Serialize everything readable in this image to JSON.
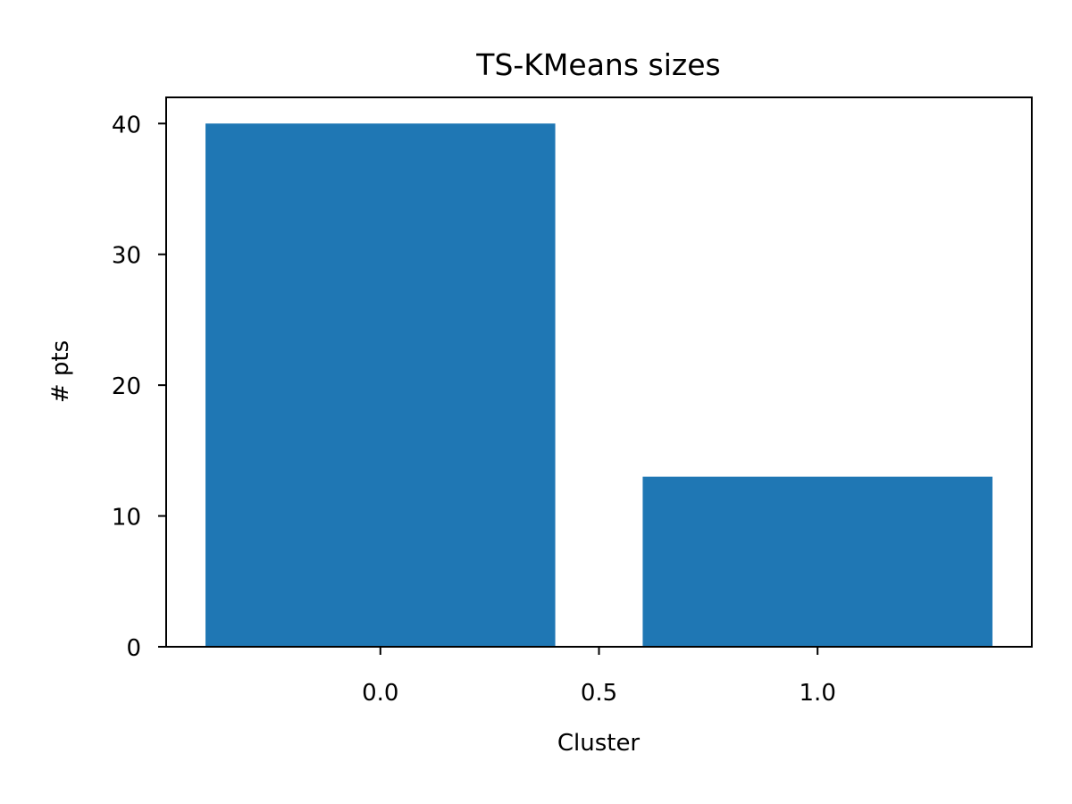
{
  "chart_data": {
    "type": "bar",
    "title": "TS-KMeans sizes",
    "xlabel": "Cluster",
    "ylabel": "# pts",
    "x": [
      0,
      1
    ],
    "values": [
      40,
      13
    ],
    "bar_width": 0.8,
    "xlim": [
      -0.49,
      1.49
    ],
    "ylim": [
      0,
      42
    ],
    "xticks": [
      0.0,
      0.5,
      1.0
    ],
    "xtick_labels": [
      "0.0",
      "0.5",
      "1.0"
    ],
    "yticks": [
      0,
      10,
      20,
      30,
      40
    ],
    "ytick_labels": [
      "0",
      "10",
      "20",
      "30",
      "40"
    ],
    "bar_color": "#1f77b4",
    "grid": false,
    "legend": "none"
  }
}
